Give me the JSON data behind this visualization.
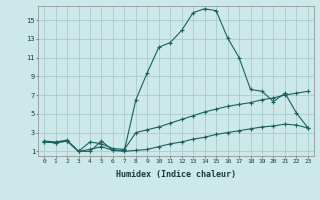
{
  "xlabel": "Humidex (Indice chaleur)",
  "bg_color": "#cce8e8",
  "grid_color": "#aacccc",
  "line_color": "#1a6060",
  "xlim": [
    -0.5,
    23.5
  ],
  "ylim": [
    0.5,
    16.5
  ],
  "yticks": [
    1,
    3,
    5,
    7,
    9,
    11,
    13,
    15
  ],
  "xticks": [
    0,
    1,
    2,
    3,
    4,
    5,
    6,
    7,
    8,
    9,
    10,
    11,
    12,
    13,
    14,
    15,
    16,
    17,
    18,
    19,
    20,
    21,
    22,
    23
  ],
  "line1_x": [
    0,
    1,
    2,
    3,
    4,
    5,
    6,
    7,
    8,
    9,
    10,
    11,
    12,
    13,
    14,
    15,
    16,
    17,
    18,
    19,
    20,
    21,
    22,
    23
  ],
  "line1_y": [
    2.1,
    2.0,
    2.2,
    1.0,
    1.0,
    2.1,
    1.1,
    1.1,
    6.5,
    9.4,
    12.1,
    12.6,
    13.9,
    15.8,
    16.2,
    16.0,
    13.1,
    11.0,
    7.6,
    7.4,
    6.3,
    7.2,
    5.1,
    3.5
  ],
  "line2_x": [
    0,
    1,
    2,
    3,
    4,
    5,
    6,
    7,
    8,
    9,
    10,
    11,
    12,
    13,
    14,
    15,
    16,
    17,
    18,
    19,
    20,
    21,
    22,
    23
  ],
  "line2_y": [
    2.0,
    1.9,
    2.1,
    1.0,
    2.0,
    1.8,
    1.3,
    1.2,
    3.0,
    3.3,
    3.6,
    4.0,
    4.4,
    4.8,
    5.2,
    5.5,
    5.8,
    6.0,
    6.2,
    6.5,
    6.7,
    7.0,
    7.2,
    7.4
  ],
  "line3_x": [
    0,
    1,
    2,
    3,
    4,
    5,
    6,
    7,
    8,
    9,
    10,
    11,
    12,
    13,
    14,
    15,
    16,
    17,
    18,
    19,
    20,
    21,
    22,
    23
  ],
  "line3_y": [
    2.0,
    1.9,
    2.1,
    1.0,
    1.2,
    1.5,
    1.1,
    1.0,
    1.1,
    1.2,
    1.5,
    1.8,
    2.0,
    2.3,
    2.5,
    2.8,
    3.0,
    3.2,
    3.4,
    3.6,
    3.7,
    3.9,
    3.8,
    3.5
  ]
}
